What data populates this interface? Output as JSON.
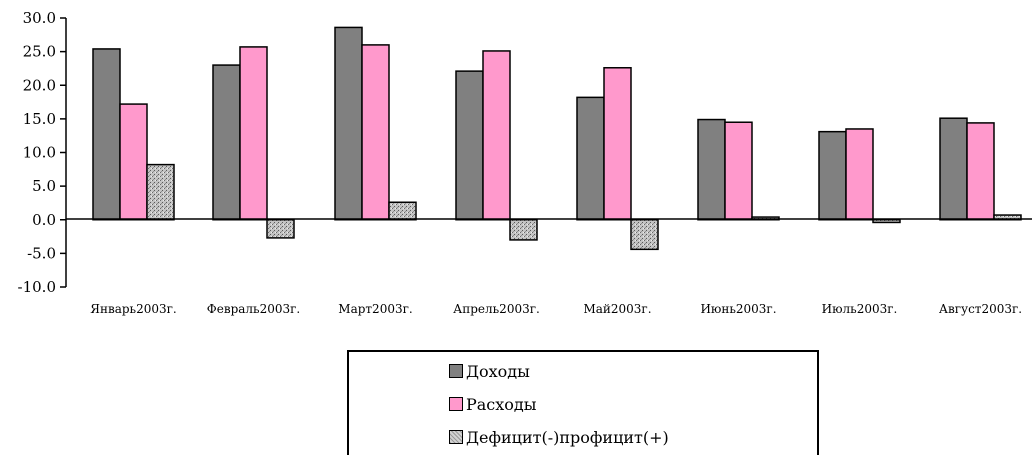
{
  "chart_data": {
    "type": "bar",
    "categories": [
      "Январь2003г.",
      "Февраль2003г.",
      "Март2003г.",
      "Апрель2003г.",
      "Май2003г.",
      "Июнь2003г.",
      "Июль2003г.",
      "Август2003г."
    ],
    "series": [
      {
        "name": "Доходы",
        "values": [
          25.4,
          23.0,
          28.6,
          22.1,
          18.2,
          14.9,
          13.1,
          15.1
        ],
        "color": "#808080"
      },
      {
        "name": "Расходы",
        "values": [
          17.2,
          25.7,
          26.0,
          25.1,
          22.6,
          14.5,
          13.5,
          14.4
        ],
        "color": "#ff99cc"
      },
      {
        "name": "Дефицит(-)профицит(+)",
        "values": [
          8.2,
          -2.7,
          2.6,
          -3.0,
          -4.4,
          0.4,
          -0.4,
          0.7
        ],
        "color": "#b8b8b8"
      }
    ],
    "yticks": [
      "30.0",
      "25.0",
      "20.0",
      "15.0",
      "10.0",
      "5.0",
      "0.0",
      "-5.0",
      "-10.0"
    ],
    "ylim": [
      -10,
      30
    ],
    "title": "",
    "xlabel": "",
    "ylabel": "",
    "grid": false,
    "legend_position": "bottom"
  }
}
